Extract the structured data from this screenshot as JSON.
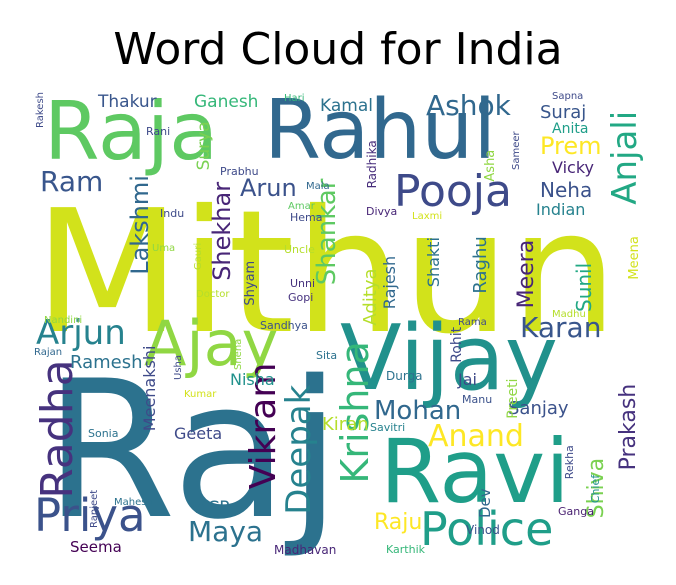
{
  "title": "Word Cloud for India",
  "words": [
    {
      "text": "Mithun",
      "color": "#d2e21b"
    },
    {
      "text": "Raj",
      "color": "#2c728e"
    },
    {
      "text": "Rahul",
      "color": "#31688e"
    },
    {
      "text": "Vijay",
      "color": "#21918c"
    },
    {
      "text": "Raja",
      "color": "#5ec962"
    },
    {
      "text": "Ravi",
      "color": "#1f9e89"
    },
    {
      "text": "Ajay",
      "color": "#90d743"
    },
    {
      "text": "Police",
      "color": "#1f9e89"
    },
    {
      "text": "Priya",
      "color": "#3b528b"
    },
    {
      "text": "Pooja",
      "color": "#3e4a89"
    },
    {
      "text": "Radha",
      "color": "#46327e"
    },
    {
      "text": "Arjun",
      "color": "#26828e"
    },
    {
      "text": "Vikram",
      "color": "#440154"
    },
    {
      "text": "Krishna",
      "color": "#35b779"
    },
    {
      "text": "Deepak",
      "color": "#26828e"
    },
    {
      "text": "Anjali",
      "color": "#22a884"
    },
    {
      "text": "Karan",
      "color": "#39568c"
    },
    {
      "text": "Anand",
      "color": "#fde725"
    },
    {
      "text": "Mohan",
      "color": "#31688e"
    },
    {
      "text": "Shankar",
      "color": "#5ec962"
    },
    {
      "text": "Ram",
      "color": "#39568c"
    },
    {
      "text": "Ashok",
      "color": "#31688e"
    },
    {
      "text": "Lakshmi",
      "color": "#31688e"
    },
    {
      "text": "Maya",
      "color": "#2c728e"
    },
    {
      "text": "Prem",
      "color": "#fde725"
    },
    {
      "text": "Arun",
      "color": "#3b528b"
    },
    {
      "text": "Shekhar",
      "color": "#482677"
    },
    {
      "text": "Prakash",
      "color": "#46327e"
    },
    {
      "text": "Shiva",
      "color": "#7ad151"
    },
    {
      "text": "Raju",
      "color": "#fde725"
    },
    {
      "text": "Neha",
      "color": "#3b528b"
    },
    {
      "text": "Meera",
      "color": "#482677"
    },
    {
      "text": "Sunil",
      "color": "#22a884"
    },
    {
      "text": "Sanjay",
      "color": "#3b528b"
    },
    {
      "text": "Suraj",
      "color": "#39568c"
    },
    {
      "text": "Aditya",
      "color": "#b5de2b"
    },
    {
      "text": "Ramesh",
      "color": "#2c728e"
    },
    {
      "text": "Raghu",
      "color": "#2c728e"
    },
    {
      "text": "Kiran",
      "color": "#b5de2b"
    },
    {
      "text": "Thakur",
      "color": "#39568c"
    },
    {
      "text": "Ganesh",
      "color": "#35b779"
    },
    {
      "text": "Kamal",
      "color": "#2c728e"
    },
    {
      "text": "Surya",
      "color": "#7ad151"
    },
    {
      "text": "Nisha",
      "color": "#21918c"
    },
    {
      "text": "Geeta",
      "color": "#3e4a89"
    },
    {
      "text": "Jai",
      "color": "#3e4a89"
    },
    {
      "text": "ACP",
      "color": "#2c728e"
    },
    {
      "text": "Shakti",
      "color": "#2c728e"
    },
    {
      "text": "Vicky",
      "color": "#482677"
    },
    {
      "text": "Indian",
      "color": "#26828e"
    },
    {
      "text": "Rajesh",
      "color": "#31688e"
    },
    {
      "text": "Meenakshi",
      "color": "#3e4a89"
    },
    {
      "text": "Dev",
      "color": "#31688e"
    },
    {
      "text": "Rohit",
      "color": "#3e4a89"
    },
    {
      "text": "Preeti",
      "color": "#90d743"
    },
    {
      "text": "Seema",
      "color": "#440154"
    },
    {
      "text": "Anita",
      "color": "#1f9e89"
    },
    {
      "text": "Meena",
      "color": "#d2e21b"
    },
    {
      "text": "Shyam",
      "color": "#3e4a89"
    },
    {
      "text": "Radhika",
      "color": "#472d7b"
    },
    {
      "text": "Asha",
      "color": "#90d743"
    },
    {
      "text": "Madhavan",
      "color": "#482677"
    },
    {
      "text": "Karthik",
      "color": "#35b779"
    },
    {
      "text": "Vinod",
      "color": "#3b528b"
    },
    {
      "text": "Ganga",
      "color": "#481f70"
    },
    {
      "text": "Chief",
      "color": "#21918c"
    },
    {
      "text": "Rekha",
      "color": "#3e4a89"
    },
    {
      "text": "Durga",
      "color": "#2c728e"
    },
    {
      "text": "Manu",
      "color": "#3b528b"
    },
    {
      "text": "Savitri",
      "color": "#26828e"
    },
    {
      "text": "Sita",
      "color": "#2c728e"
    },
    {
      "text": "Sandhya",
      "color": "#3b528b"
    },
    {
      "text": "Unni",
      "color": "#46327e"
    },
    {
      "text": "Gopi",
      "color": "#46327e"
    },
    {
      "text": "Hema",
      "color": "#3e4a89"
    },
    {
      "text": "Amar",
      "color": "#5ec962"
    },
    {
      "text": "Mala",
      "color": "#31688e"
    },
    {
      "text": "Divya",
      "color": "#482677"
    },
    {
      "text": "Laxmi",
      "color": "#d2e21b"
    },
    {
      "text": "Madhu",
      "color": "#b5de2b"
    },
    {
      "text": "Rama",
      "color": "#3e4a89"
    },
    {
      "text": "Indu",
      "color": "#3e4a89"
    },
    {
      "text": "Uma",
      "color": "#90d743"
    },
    {
      "text": "Gauri",
      "color": "#b5de2b"
    },
    {
      "text": "Uncle",
      "color": "#b5de2b"
    },
    {
      "text": "Doctor",
      "color": "#b5de2b"
    },
    {
      "text": "Nandini",
      "color": "#90d743"
    },
    {
      "text": "Rajan",
      "color": "#31688e"
    },
    {
      "text": "Usha",
      "color": "#3e4a89"
    },
    {
      "text": "Sneha",
      "color": "#90d743"
    },
    {
      "text": "Kumar",
      "color": "#d2e21b"
    },
    {
      "text": "Sonia",
      "color": "#2c728e"
    },
    {
      "text": "Ranjeet",
      "color": "#3e4a89"
    },
    {
      "text": "Mahesh",
      "color": "#2c728e"
    },
    {
      "text": "Rani",
      "color": "#3e4a89"
    },
    {
      "text": "Prabhu",
      "color": "#3e4a89"
    },
    {
      "text": "Hari",
      "color": "#35b779"
    },
    {
      "text": "Sapna",
      "color": "#3e4a89"
    },
    {
      "text": "Sameer",
      "color": "#3e4a89"
    },
    {
      "text": "Rakesh",
      "color": "#3e4a89"
    }
  ]
}
